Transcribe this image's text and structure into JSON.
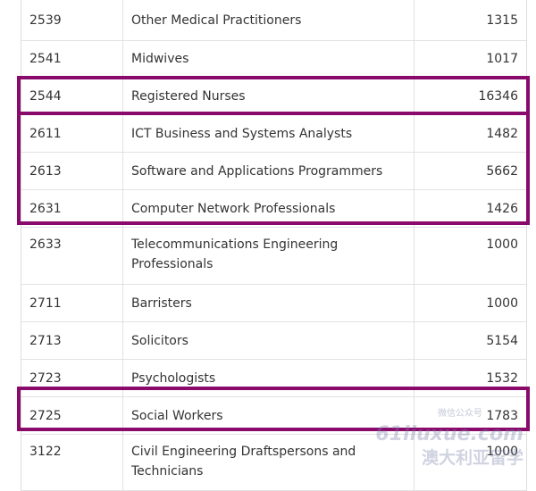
{
  "table": {
    "rows": [
      {
        "code": "2539",
        "name": "Other Medical Practitioners",
        "value": "1315"
      },
      {
        "code": "2541",
        "name": "Midwives",
        "value": "1017"
      },
      {
        "code": "2544",
        "name": "Registered Nurses",
        "value": "16346"
      },
      {
        "code": "2611",
        "name": "ICT Business and Systems Analysts",
        "value": "1482"
      },
      {
        "code": "2613",
        "name": "Software and Applications Programmers",
        "value": "5662"
      },
      {
        "code": "2631",
        "name": "Computer Network Professionals",
        "value": "1426"
      },
      {
        "code": "2633",
        "name": "Telecommunications Engineering Professionals",
        "value": "1000"
      },
      {
        "code": "2711",
        "name": "Barristers",
        "value": "1000"
      },
      {
        "code": "2713",
        "name": "Solicitors",
        "value": "5154"
      },
      {
        "code": "2723",
        "name": "Psychologists",
        "value": "1532"
      },
      {
        "code": "2725",
        "name": "Social Workers",
        "value": "1783"
      },
      {
        "code": "3122",
        "name": "Civil Engineering Draftspersons and Technicians",
        "value": "1000"
      }
    ]
  },
  "watermark": {
    "line1": "61liuxue.com",
    "line2": "澳大利亚留学",
    "small": "微信公众号"
  },
  "colors": {
    "highlight": "#8a0a6b"
  }
}
